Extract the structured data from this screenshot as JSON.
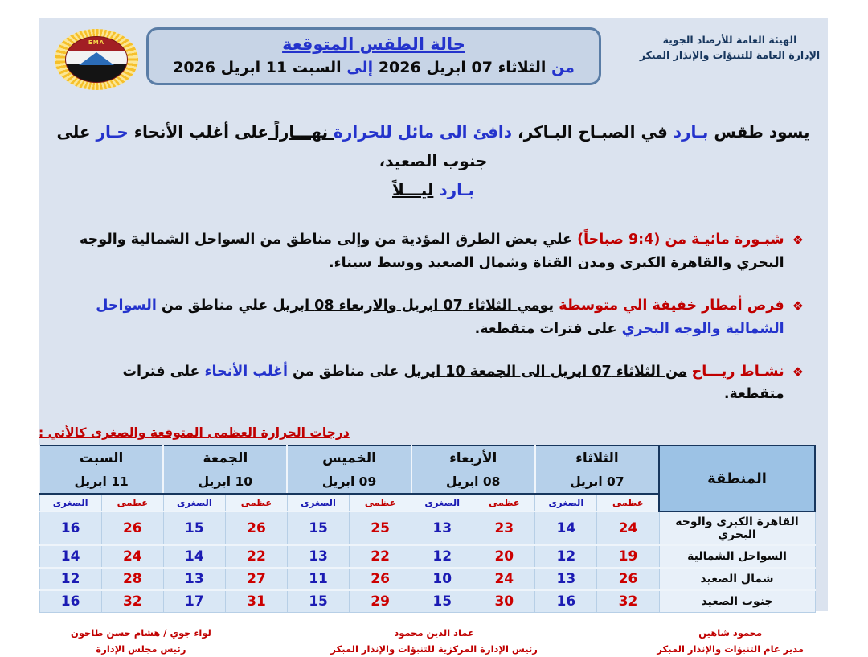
{
  "org": {
    "line1": "الهيئة العامة للأرصاد الجوية",
    "line2": "الإدارة العامة للتنبؤات والإنذار المبكر",
    "logo_text": "EMA"
  },
  "title": {
    "heading": "حالة الطقس المتوقعة",
    "from_word": "من",
    "from_date": " الثلاثاء 07 ابريل 2026 ",
    "to_word": "إلى",
    "to_date": " السبت 11 ابريل 2026"
  },
  "intro": {
    "s1": "يسود طقس ",
    "s2": "بـارد",
    "s3": " في الصبـاح البـاكر، ",
    "s4": "دافئ الى مائل للحرارة",
    "s5": " نهـــاراً ",
    "s6": "على أغلب الأنحاء ",
    "s7": "حـار",
    "s8": " على جنوب الصعيد،",
    "s9": "بـارد ",
    "s10": "ليـــلاً"
  },
  "bullets": {
    "marker": "❖",
    "b1": {
      "red": "شبـورة مائيـة من (9:4 صباحاً)",
      "rest": " علي بعض الطرق المؤدية من وإلى مناطق من السواحل الشمالية والوجه البحري والقاهرة الكبرى ومدن القناة وشمال الصعيد ووسط سيناء."
    },
    "b2": {
      "red": "فرص أمطار خفيفة الي متوسطة ",
      "underline": "يومي الثلاثاء 07 ابريل والاربعاء 08 ابريل",
      "mid": "  علي مناطق من ",
      "blue": "السواحل الشمالية والوجه البحري",
      "tail": " على فترات متقطعة."
    },
    "b3": {
      "red": "نشـاط ريـــاح ",
      "underline": "من الثلاثاء 07 ابريل الى الجمعة 10 ابريل",
      "mid": " على مناطق من ",
      "blue": "أغلب الأنحاء",
      "tail": " على فترات متقطعة."
    }
  },
  "table": {
    "caption": "درجات الحرارة العظمى المتوقعة والصغرى كالأتي :",
    "region_header": "المنطقة",
    "max_label": "عظمى",
    "min_label": "الصغرى",
    "days": [
      {
        "name": "الثلاثاء",
        "date": "07 ابريل"
      },
      {
        "name": "الأربعاء",
        "date": "08 ابريل"
      },
      {
        "name": "الخميس",
        "date": "09 ابريل"
      },
      {
        "name": "الجمعة",
        "date": "10 ابريل"
      },
      {
        "name": "السبت",
        "date": "11 ابريل"
      }
    ],
    "rows": [
      {
        "region": "القاهرة الكبرى والوجه البحري",
        "temps": [
          24,
          14,
          23,
          13,
          25,
          15,
          26,
          15,
          26,
          16
        ]
      },
      {
        "region": "السواحل الشمالية",
        "temps": [
          19,
          12,
          20,
          12,
          22,
          13,
          22,
          14,
          24,
          14
        ]
      },
      {
        "region": "شمال الصعيد",
        "temps": [
          26,
          13,
          24,
          10,
          26,
          11,
          27,
          13,
          28,
          12
        ]
      },
      {
        "region": "جنوب الصعيد",
        "temps": [
          32,
          16,
          30,
          15,
          29,
          15,
          31,
          17,
          32,
          16
        ]
      }
    ]
  },
  "signatures": [
    {
      "name": "محمود شاهين",
      "title": "مدير عام التنبؤات والإنذار المبكر"
    },
    {
      "name": "عماد الدين محمود",
      "title": "رئيس الإدارة المركزية للتنبؤات والإنذار المبكر"
    },
    {
      "name": "لواء جوي / هشام حسن طاحون",
      "title": "رئيس مجلس الإدارة"
    }
  ],
  "colors": {
    "accent_red": "#c00000",
    "accent_blue": "#2433cc",
    "header_navy": "#17365d"
  }
}
